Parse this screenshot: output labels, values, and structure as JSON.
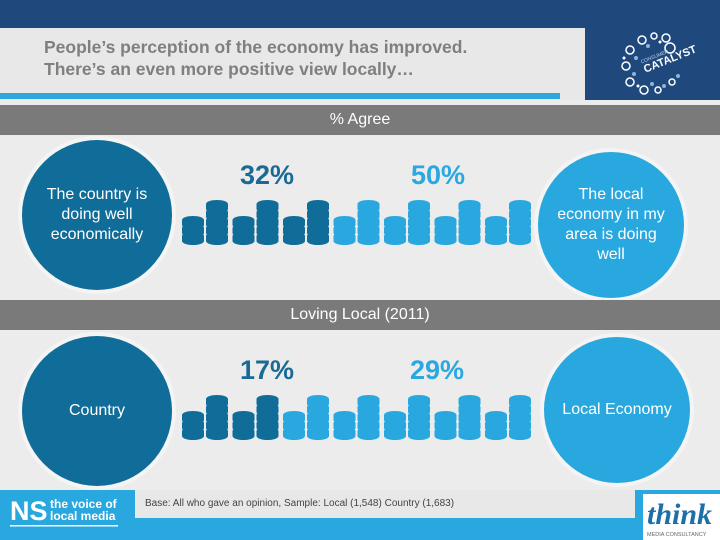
{
  "header": {
    "title": "People’s perception of the economy has improved.\nThere’s an even more positive view locally…",
    "logo_label": "Consumer CATALYST"
  },
  "section1": {
    "band_label": "% Agree",
    "left_circle": "The country is\ndoing well\neconomically",
    "right_circle": "The local\neconomy in my\narea is doing\nwell",
    "left_pct": "32%",
    "right_pct": "50%",
    "dark_pairs": 3,
    "total_pairs": 7
  },
  "section2": {
    "band_label": "Loving Local (2011)",
    "left_circle": "Country",
    "right_circle": "Local Economy",
    "left_pct": "17%",
    "right_pct": "29%",
    "dark_pairs": 2,
    "total_pairs": 7
  },
  "footer": {
    "note": "Base: All who gave an opinion, Sample: Local (1,548) Country (1,683)",
    "ns_logo_line1": "the voice of",
    "ns_logo_line2": "local media",
    "ns_mark": "NS",
    "think_logo": "think",
    "think_sub": "MEDIA CONSULTANCY"
  },
  "colors": {
    "dark_blue": "#106c98",
    "light_blue": "#29a8df",
    "navy": "#1f497d",
    "band_gray": "#7a7a7a"
  },
  "chart_data": [
    {
      "type": "bar",
      "title": "% Agree",
      "categories": [
        "The country is doing well economically",
        "The local economy in my area is doing well"
      ],
      "values": [
        32,
        50
      ],
      "ylabel": "% Agree",
      "ylim": [
        0,
        100
      ]
    },
    {
      "type": "bar",
      "title": "Loving Local (2011)",
      "categories": [
        "Country",
        "Local Economy"
      ],
      "values": [
        17,
        29
      ],
      "ylabel": "% Agree",
      "ylim": [
        0,
        100
      ]
    }
  ]
}
